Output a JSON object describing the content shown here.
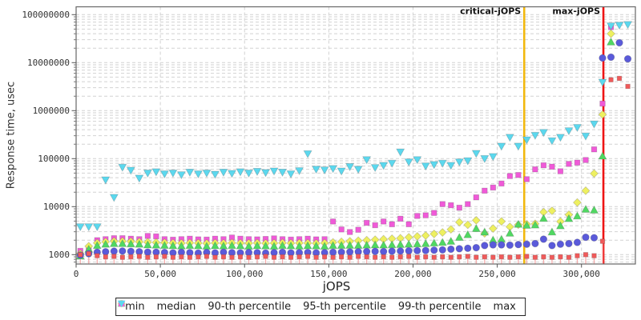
{
  "chart_data": {
    "type": "scatter",
    "title": "",
    "xlabel": "jOPS",
    "ylabel": "Response time, usec",
    "x_axis": {
      "min": 0,
      "max": 332000,
      "ticks": [
        0,
        50000,
        100000,
        150000,
        200000,
        250000,
        300000
      ],
      "tick_labels": [
        "0",
        "50,000",
        "100,000",
        "150,000",
        "200,000",
        "250,000",
        "300,000"
      ]
    },
    "y_axis": {
      "scale": "log",
      "min": 640,
      "max": 150000000,
      "ticks": [
        1000,
        10000,
        100000,
        1000000,
        10000000,
        100000000
      ],
      "tick_labels": [
        "1000",
        "10000",
        "100000",
        "1000000",
        "10000000",
        "100000000"
      ]
    },
    "x_start": 2500,
    "x_step": 5000,
    "marker_lines": [
      {
        "label": "critical-jOPS",
        "x": 266000,
        "color": "#f2b80e"
      },
      {
        "label": "max-jOPS",
        "x": 313000,
        "color": "#ee1414"
      }
    ],
    "legend_position": "bottom",
    "grid": true,
    "series": [
      {
        "name": "min",
        "marker": "square",
        "color": "#f05a5a",
        "stem_color": "#f5aaaa",
        "stems": true,
        "values": [
          1000,
          1050,
          950,
          900,
          920,
          880,
          900,
          920,
          880,
          900,
          920,
          880,
          900,
          880,
          900,
          920,
          880,
          900,
          880,
          900,
          880,
          900,
          920,
          880,
          900,
          880,
          900,
          920,
          880,
          900,
          880,
          900,
          880,
          920,
          900,
          880,
          900,
          880,
          900,
          920,
          880,
          900,
          880,
          900,
          880,
          900,
          920,
          880,
          900,
          880,
          900,
          880,
          900,
          920,
          880,
          900,
          880,
          900,
          880,
          950,
          1000,
          950,
          1900,
          4400000,
          4700000,
          3200000
        ]
      },
      {
        "name": "median",
        "marker": "circle",
        "color": "#5a5ada",
        "values": [
          980,
          1050,
          1120,
          1150,
          1180,
          1190,
          1170,
          1150,
          1130,
          1120,
          1110,
          1090,
          1120,
          1100,
          1080,
          1110,
          1090,
          1120,
          1100,
          1090,
          1110,
          1100,
          1080,
          1100,
          1120,
          1090,
          1100,
          1110,
          1090,
          1100,
          1120,
          1130,
          1140,
          1150,
          1160,
          1170,
          1160,
          1180,
          1190,
          1200,
          1210,
          1220,
          1240,
          1260,
          1300,
          1330,
          1360,
          1400,
          1550,
          1600,
          1600,
          1580,
          1620,
          1650,
          1700,
          2100,
          1550,
          1650,
          1700,
          1800,
          2300,
          2250,
          12500000,
          13000000,
          26000000,
          12000000
        ]
      },
      {
        "name": "90-th percentile",
        "marker": "triangle-up",
        "color": "#50d862",
        "values": [
          940,
          1300,
          1550,
          1650,
          1700,
          1700,
          1680,
          1650,
          1600,
          1580,
          1560,
          1540,
          1520,
          1550,
          1530,
          1500,
          1540,
          1520,
          1550,
          1530,
          1500,
          1540,
          1520,
          1500,
          1550,
          1530,
          1510,
          1540,
          1520,
          1500,
          1550,
          1560,
          1570,
          1560,
          1580,
          1600,
          1590,
          1610,
          1630,
          1650,
          1680,
          1700,
          1750,
          1800,
          1900,
          2290,
          2610,
          3500,
          2960,
          2020,
          2100,
          2800,
          4300,
          4100,
          4150,
          5700,
          2970,
          4000,
          5650,
          6400,
          8800,
          8500,
          113000,
          27000000,
          null,
          null
        ]
      },
      {
        "name": "95-th percentile",
        "marker": "diamond",
        "color": "#eef060",
        "values": [
          1050,
          1500,
          1750,
          1850,
          1900,
          1900,
          1880,
          1850,
          1820,
          1800,
          1780,
          1750,
          1730,
          1760,
          1740,
          1720,
          1750,
          1730,
          1760,
          1740,
          1730,
          1750,
          1720,
          1740,
          1760,
          1730,
          1750,
          1740,
          1720,
          1750,
          1800,
          1850,
          1900,
          1950,
          2000,
          2050,
          2100,
          2150,
          2200,
          2300,
          2400,
          2500,
          2700,
          2900,
          3360,
          4740,
          4180,
          5200,
          2770,
          3500,
          4930,
          3800,
          4200,
          4300,
          4400,
          7700,
          8200,
          4900,
          6800,
          12200,
          21500,
          49000,
          830000,
          40000000,
          null,
          null
        ]
      },
      {
        "name": "99-th percentile",
        "marker": "square",
        "color": "#f05ad8",
        "values": [
          1200,
          1300,
          2000,
          2100,
          2200,
          2200,
          2150,
          2100,
          2450,
          2400,
          2100,
          2050,
          2100,
          2150,
          2080,
          2060,
          2150,
          2100,
          2270,
          2150,
          2100,
          2080,
          2120,
          2180,
          2100,
          2060,
          2100,
          2150,
          2080,
          2100,
          4900,
          3350,
          2960,
          3300,
          4600,
          4100,
          4900,
          4300,
          5600,
          4300,
          6400,
          6600,
          7400,
          11300,
          10700,
          9500,
          11300,
          15600,
          21500,
          25000,
          30300,
          43400,
          45600,
          37300,
          59800,
          72600,
          68000,
          54600,
          77600,
          82600,
          93600,
          156000,
          1400000,
          55000000,
          null,
          null
        ]
      },
      {
        "name": "max",
        "marker": "triangle-down",
        "color": "#5cd8ee",
        "values": [
          3800,
          3800,
          3800,
          36000,
          15500,
          66000,
          57000,
          39000,
          50000,
          53000,
          48000,
          50000,
          46000,
          52000,
          48000,
          50000,
          47000,
          52000,
          49000,
          53000,
          50000,
          54000,
          51000,
          55000,
          52000,
          48000,
          56000,
          126000,
          60000,
          58000,
          62000,
          55000,
          68000,
          60000,
          95000,
          65000,
          72000,
          80000,
          137000,
          85000,
          95000,
          70000,
          75000,
          80000,
          72000,
          85000,
          90000,
          128000,
          100000,
          110000,
          181000,
          277000,
          181000,
          245000,
          305000,
          350000,
          235000,
          277000,
          380000,
          445000,
          295000,
          525000,
          3900000,
          58000000,
          60000000,
          62000000
        ]
      }
    ]
  }
}
